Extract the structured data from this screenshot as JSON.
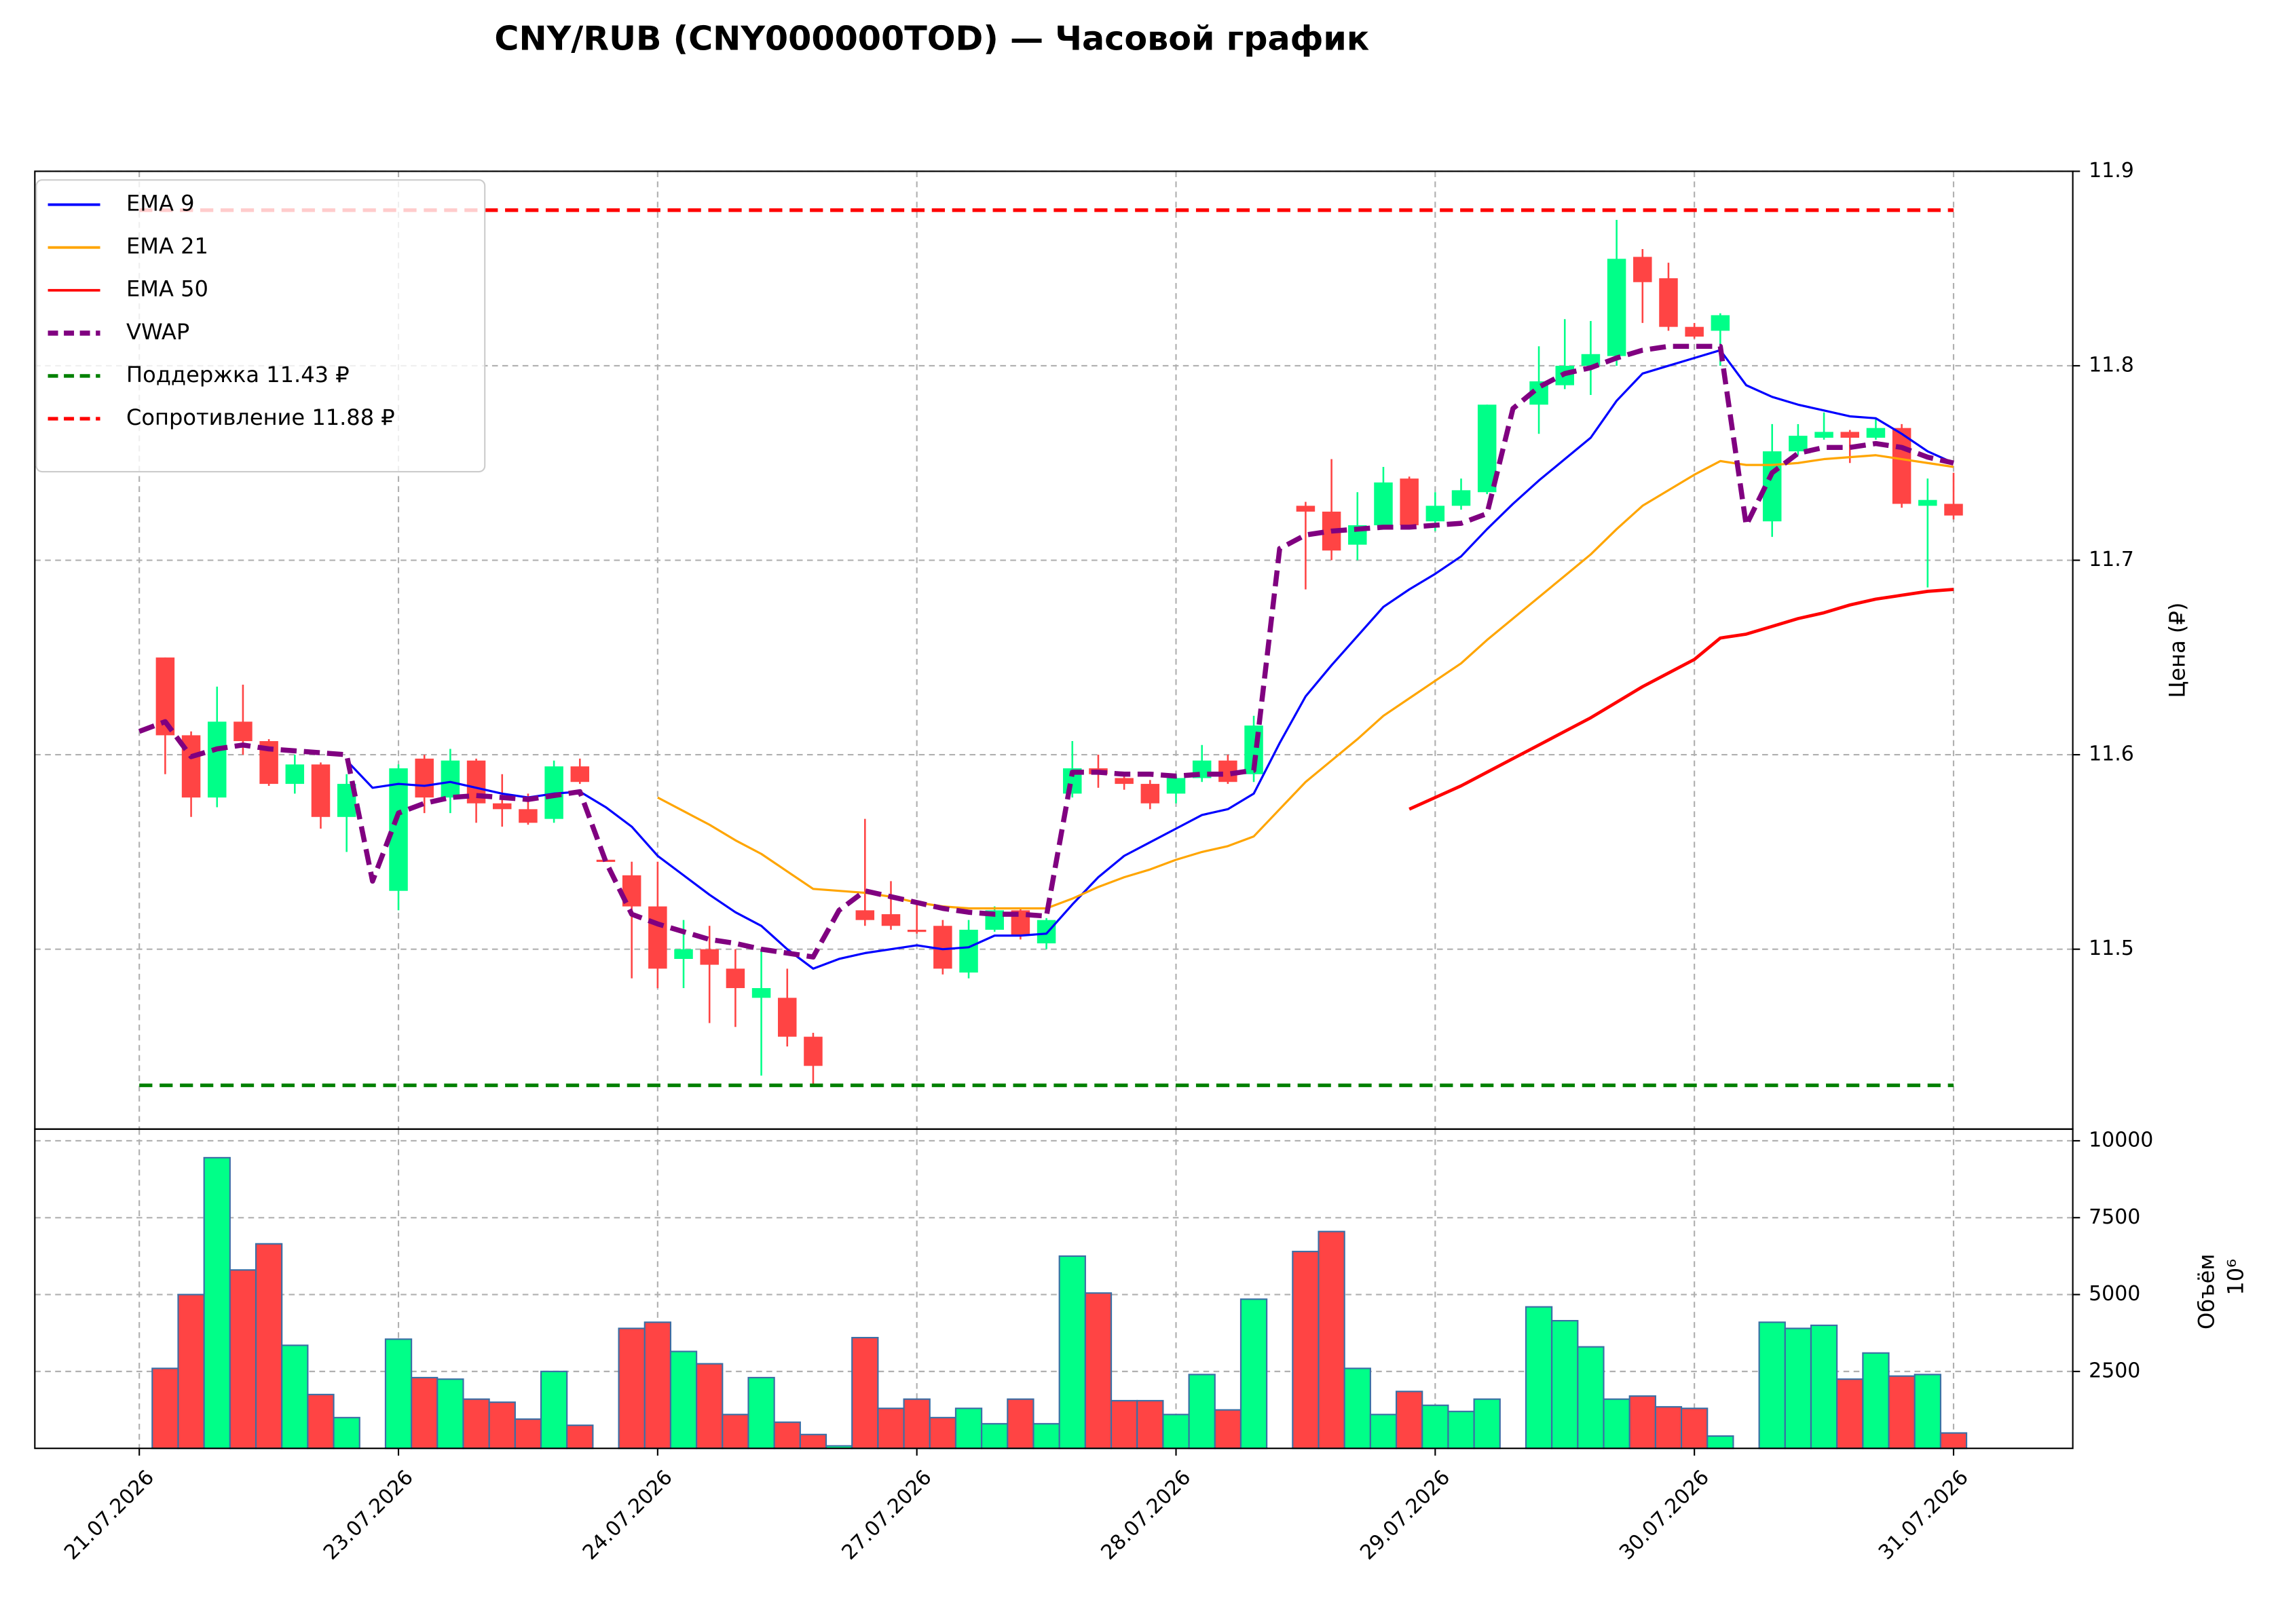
{
  "chart_data": {
    "type": "candlestick",
    "title": "CNY/RUB (CNY000000TOD) — Часовой график",
    "y_label": "Цена (₽)",
    "grid": true,
    "legend": "upper left",
    "up_color": "#00ff88",
    "down_color": "#ff4444",
    "x": [
      0,
      1,
      2,
      3,
      4,
      5,
      6,
      7,
      8,
      9,
      10,
      11,
      12,
      13,
      14,
      15,
      16,
      17,
      18,
      19,
      20,
      21,
      22,
      23,
      24,
      25,
      26,
      27,
      28,
      29,
      30,
      31,
      32,
      33,
      34,
      35,
      36,
      37,
      38,
      39,
      40,
      41,
      42,
      43,
      44,
      45,
      46,
      47,
      48,
      49,
      50,
      51,
      52,
      53,
      54,
      55,
      56,
      57,
      58,
      59,
      60,
      61,
      62,
      63,
      64,
      65,
      66,
      67,
      68,
      69,
      70
    ],
    "xlim": [
      -4.03,
      74.6
    ],
    "xticks": [
      {
        "value": 0,
        "label": "21.07.2026"
      },
      {
        "value": 10,
        "label": "23.07.2026"
      },
      {
        "value": 20,
        "label": "24.07.2026"
      },
      {
        "value": 30,
        "label": "27.07.2026"
      },
      {
        "value": 40,
        "label": "28.07.2026"
      },
      {
        "value": 50,
        "label": "29.07.2026"
      },
      {
        "value": 60,
        "label": "30.07.2026"
      },
      {
        "value": 70,
        "label": "31.07.2026"
      }
    ],
    "ylim": [
      11.4075,
      11.9
    ],
    "yticks": [
      11.5,
      11.6,
      11.7,
      11.8,
      11.9
    ],
    "open": [
      null,
      11.65,
      11.61,
      11.578,
      11.617,
      11.607,
      11.585,
      11.595,
      11.568,
      null,
      11.53,
      11.598,
      11.578,
      11.597,
      11.575,
      11.572,
      11.567,
      11.594,
      11.546,
      11.538,
      11.522,
      11.495,
      11.5,
      11.49,
      11.475,
      11.475,
      11.455,
      null,
      11.52,
      11.518,
      11.51,
      11.512,
      11.488,
      11.51,
      11.52,
      11.503,
      11.58,
      11.593,
      11.588,
      11.585,
      11.58,
      11.588,
      11.597,
      11.59,
      null,
      11.728,
      11.725,
      11.708,
      11.718,
      11.742,
      11.72,
      11.728,
      11.735,
      null,
      11.78,
      11.79,
      11.8,
      11.805,
      11.856,
      11.845,
      11.82,
      11.818,
      null,
      11.72,
      11.756,
      11.763,
      11.766,
      11.763,
      11.768,
      11.728,
      11.729
    ],
    "high": [
      null,
      11.65,
      11.612,
      11.635,
      11.636,
      11.608,
      11.6,
      11.596,
      11.59,
      null,
      11.595,
      11.6,
      11.603,
      11.598,
      11.59,
      11.58,
      11.597,
      11.598,
      11.546,
      11.545,
      11.545,
      11.515,
      11.512,
      11.5,
      11.5,
      11.49,
      11.457,
      null,
      11.567,
      11.535,
      11.525,
      11.515,
      11.515,
      11.522,
      11.521,
      11.516,
      11.607,
      11.6,
      11.59,
      11.587,
      11.59,
      11.605,
      11.6,
      11.62,
      null,
      11.73,
      11.752,
      11.735,
      11.748,
      11.743,
      11.735,
      11.742,
      11.78,
      null,
      11.81,
      11.824,
      11.823,
      11.875,
      11.86,
      11.853,
      11.822,
      11.827,
      null,
      11.77,
      11.77,
      11.776,
      11.767,
      11.773,
      11.77,
      11.742,
      11.745
    ],
    "low": [
      null,
      11.59,
      11.568,
      11.573,
      11.6,
      11.584,
      11.58,
      11.562,
      11.55,
      null,
      11.52,
      11.57,
      11.57,
      11.565,
      11.563,
      11.564,
      11.565,
      11.585,
      11.545,
      11.485,
      11.48,
      11.48,
      11.462,
      11.46,
      11.435,
      11.45,
      11.43,
      null,
      11.512,
      11.51,
      11.508,
      11.487,
      11.485,
      11.509,
      11.505,
      11.5,
      11.578,
      11.583,
      11.582,
      11.572,
      11.575,
      11.586,
      11.585,
      11.586,
      null,
      11.685,
      11.7,
      11.7,
      11.716,
      11.716,
      11.715,
      11.726,
      11.734,
      null,
      11.765,
      11.788,
      11.785,
      11.8,
      11.822,
      11.818,
      11.814,
      11.8,
      null,
      11.712,
      11.754,
      11.762,
      11.75,
      11.762,
      11.727,
      11.686,
      11.721
    ],
    "close": [
      null,
      11.61,
      11.578,
      11.617,
      11.607,
      11.585,
      11.595,
      11.568,
      11.585,
      null,
      11.593,
      11.578,
      11.597,
      11.575,
      11.572,
      11.565,
      11.594,
      11.586,
      11.545,
      11.522,
      11.49,
      11.5,
      11.492,
      11.48,
      11.48,
      11.455,
      11.44,
      null,
      11.515,
      11.512,
      11.509,
      11.49,
      11.51,
      11.52,
      11.507,
      11.515,
      11.593,
      11.59,
      11.585,
      11.575,
      11.588,
      11.597,
      11.586,
      11.615,
      null,
      11.725,
      11.705,
      11.718,
      11.74,
      11.718,
      11.728,
      11.736,
      11.78,
      null,
      11.792,
      11.8,
      11.806,
      11.855,
      11.843,
      11.82,
      11.815,
      11.826,
      null,
      11.756,
      11.764,
      11.766,
      11.763,
      11.768,
      11.729,
      11.731,
      11.723
    ],
    "series": [
      {
        "name": "EMA 9",
        "color": "#0000ff",
        "width": 1.5,
        "dashed": false,
        "values": [
          null,
          null,
          null,
          null,
          null,
          null,
          null,
          null,
          11.597,
          11.583,
          11.585,
          11.584,
          11.586,
          11.583,
          11.58,
          11.578,
          11.58,
          11.581,
          11.573,
          11.563,
          11.548,
          11.538,
          11.528,
          11.519,
          11.512,
          11.5,
          11.49,
          11.495,
          11.498,
          11.5,
          11.502,
          11.5,
          11.501,
          11.507,
          11.507,
          11.508,
          11.523,
          11.537,
          11.548,
          11.555,
          11.562,
          11.569,
          11.572,
          11.58,
          11.606,
          11.63,
          11.646,
          11.661,
          11.676,
          11.685,
          11.693,
          11.702,
          11.716,
          11.729,
          11.741,
          11.752,
          11.763,
          11.782,
          11.796,
          11.8,
          11.804,
          11.808,
          11.79,
          11.784,
          11.78,
          11.777,
          11.774,
          11.773,
          11.765,
          11.756,
          11.75
        ]
      },
      {
        "name": "EMA 21",
        "color": "#ffa500",
        "width": 1.5,
        "dashed": false,
        "values": [
          null,
          null,
          null,
          null,
          null,
          null,
          null,
          null,
          null,
          null,
          null,
          null,
          null,
          null,
          null,
          null,
          null,
          null,
          null,
          null,
          11.578,
          11.571,
          11.564,
          11.556,
          11.549,
          11.54,
          11.531,
          11.53,
          11.529,
          11.527,
          11.524,
          11.522,
          11.521,
          11.521,
          11.521,
          11.521,
          11.526,
          11.532,
          11.537,
          11.541,
          11.546,
          11.55,
          11.553,
          11.558,
          11.572,
          11.586,
          11.597,
          11.608,
          11.62,
          11.629,
          11.638,
          11.647,
          11.659,
          11.67,
          11.681,
          11.692,
          11.703,
          11.716,
          11.728,
          11.736,
          11.744,
          11.751,
          11.749,
          11.749,
          11.75,
          11.752,
          11.753,
          11.754,
          11.752,
          11.75,
          11.748
        ]
      },
      {
        "name": "EMA 50",
        "color": "#ff0000",
        "width": 2.2,
        "dashed": false,
        "values": [
          null,
          null,
          null,
          null,
          null,
          null,
          null,
          null,
          null,
          null,
          null,
          null,
          null,
          null,
          null,
          null,
          null,
          null,
          null,
          null,
          null,
          null,
          null,
          null,
          null,
          null,
          null,
          null,
          null,
          null,
          null,
          null,
          null,
          null,
          null,
          null,
          null,
          null,
          null,
          null,
          null,
          null,
          null,
          null,
          null,
          null,
          null,
          null,
          null,
          11.572,
          11.578,
          11.584,
          11.591,
          11.598,
          11.605,
          11.612,
          11.619,
          11.627,
          11.635,
          11.642,
          11.649,
          11.66,
          11.662,
          11.666,
          11.67,
          11.673,
          11.677,
          11.68,
          11.682,
          11.684,
          11.685
        ]
      },
      {
        "name": "VWAP",
        "color": "#800080",
        "width": 3.5,
        "dashed": true,
        "values": [
          11.612,
          11.617,
          11.599,
          11.603,
          11.605,
          11.603,
          11.602,
          11.601,
          11.6,
          11.535,
          11.57,
          11.575,
          11.578,
          11.579,
          11.578,
          11.577,
          11.579,
          11.581,
          11.545,
          11.518,
          11.513,
          11.509,
          11.505,
          11.503,
          11.5,
          11.498,
          11.496,
          11.52,
          11.53,
          11.527,
          11.524,
          11.521,
          11.519,
          11.518,
          11.518,
          11.517,
          11.591,
          11.591,
          11.59,
          11.59,
          11.589,
          11.59,
          11.59,
          11.592,
          11.706,
          11.713,
          11.715,
          11.716,
          11.717,
          11.717,
          11.718,
          11.719,
          11.724,
          11.778,
          11.789,
          11.796,
          11.799,
          11.804,
          11.808,
          11.81,
          11.81,
          11.81,
          11.718,
          11.745,
          11.755,
          11.758,
          11.758,
          11.76,
          11.758,
          11.753,
          11.75
        ]
      }
    ],
    "levels": [
      {
        "name": "Поддержка 11.43 ₽",
        "value": 11.43,
        "color": "#008000"
      },
      {
        "name": "Сопротивление 11.88 ₽",
        "value": 11.88,
        "color": "#ff0000"
      }
    ],
    "volume": {
      "label": "Объём",
      "offset_label": "10⁶",
      "edge_color": "#3a6ea5",
      "ylim": [
        0,
        10380
      ],
      "yticks": [
        2500,
        5000,
        7500,
        10000
      ],
      "values": [
        null,
        2600,
        5000,
        9450,
        5800,
        6650,
        3350,
        1750,
        1000,
        null,
        3550,
        2300,
        2250,
        1600,
        1500,
        950,
        2500,
        750,
        null,
        3900,
        4100,
        3150,
        2750,
        1100,
        2300,
        850,
        450,
        80,
        3600,
        1300,
        1600,
        1000,
        1300,
        800,
        1600,
        800,
        6250,
        5050,
        1550,
        1550,
        1100,
        2400,
        1250,
        4850,
        null,
        6400,
        7050,
        2600,
        1100,
        1850,
        1400,
        1200,
        1600,
        null,
        4600,
        4150,
        3300,
        1600,
        1700,
        1350,
        1300,
        400,
        null,
        4100,
        3900,
        4000,
        2250,
        3100,
        2350,
        2400,
        500
      ]
    }
  }
}
